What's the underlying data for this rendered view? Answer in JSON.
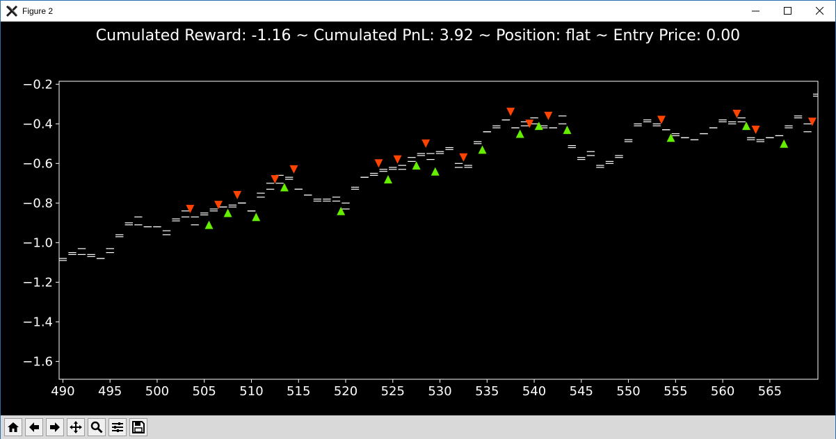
{
  "window": {
    "title": "Figure 2",
    "icon": "matplotlib-x-icon",
    "controls": [
      "minimize-icon",
      "maximize-icon",
      "close-icon"
    ]
  },
  "toolbar": {
    "buttons": [
      "home-icon",
      "back-icon",
      "forward-icon",
      "pan-icon",
      "zoom-icon",
      "configure-subplots-icon",
      "save-icon"
    ]
  },
  "chart_data": {
    "type": "candlestick",
    "title": "Cumulated Reward: -1.16 ~ Cumulated PnL: 3.92 ~ Position: flat ~ Entry Price: 0.00",
    "xlabel": "",
    "ylabel": "",
    "xlim": [
      489.6,
      570.1
    ],
    "ylim": [
      -1.69,
      -0.185
    ],
    "xticks": [
      490,
      495,
      500,
      505,
      510,
      515,
      520,
      525,
      530,
      535,
      540,
      545,
      550,
      555,
      560,
      565
    ],
    "xtick_labels": [
      "490",
      "495",
      "500",
      "505",
      "510",
      "515",
      "520",
      "525",
      "530",
      "535",
      "540",
      "545",
      "550",
      "555",
      "560",
      "565"
    ],
    "yticks": [
      -1.6,
      -1.4,
      -1.2,
      -1.0,
      -0.8,
      -0.6,
      -0.4,
      -0.2
    ],
    "ytick_labels": [
      "−1.6",
      "−1.4",
      "−1.2",
      "−1.0",
      "−0.8",
      "−0.6",
      "−0.4",
      "−0.2"
    ],
    "grid": false,
    "background": "#000000",
    "colors": {
      "bars": "#ffffff",
      "buy_marker": "#66ee00",
      "sell_marker": "#ff4400",
      "axes": "#ffffff",
      "text": "#ffffff"
    },
    "series": [
      {
        "x": [
          489,
          490,
          491,
          492,
          493,
          494,
          495,
          496,
          497,
          498,
          499,
          500,
          501,
          502,
          503,
          504,
          505,
          506,
          507,
          508,
          509,
          510,
          511,
          512,
          513,
          514,
          515,
          516,
          517,
          518,
          519,
          520,
          521,
          522,
          523,
          524,
          525,
          526,
          527,
          528,
          529,
          530,
          531,
          532,
          533,
          534,
          535,
          536,
          537,
          538,
          539,
          540,
          541,
          542,
          543,
          544,
          545,
          546,
          547,
          548,
          549,
          550,
          551,
          552,
          553,
          554,
          555,
          556,
          557,
          558,
          559,
          560,
          561,
          562,
          563,
          564,
          565,
          566,
          567,
          568,
          569,
          570
        ],
        "y": [
          -1.11,
          -1.08,
          -1.06,
          -1.03,
          -1.06,
          -1.08,
          -1.03,
          -0.96,
          -0.9,
          -0.91,
          -0.92,
          -0.92,
          -0.94,
          -0.88,
          -0.87,
          -0.87,
          -0.86,
          -0.84,
          -0.82,
          -0.81,
          -0.8,
          -0.84,
          -0.77,
          -0.7,
          -0.7,
          -0.67,
          -0.73,
          -0.76,
          -0.78,
          -0.79,
          -0.79,
          -0.8,
          -0.73,
          -0.67,
          -0.65,
          -0.63,
          -0.63,
          -0.63,
          -0.57,
          -0.56,
          -0.58,
          -0.55,
          -0.53,
          -0.6,
          -0.62,
          -0.5,
          -0.44,
          -0.42,
          -0.38,
          -0.42,
          -0.41,
          -0.4,
          -0.42,
          -0.42,
          -0.4,
          -0.52,
          -0.57,
          -0.56,
          -0.61,
          -0.6,
          -0.57,
          -0.49,
          -0.41,
          -0.39,
          -0.41,
          -0.43,
          -0.46,
          -0.47,
          -0.48,
          -0.45,
          -0.42,
          -0.39,
          -0.4,
          -0.39,
          -0.47,
          -0.49,
          -0.47,
          -0.46,
          -0.42,
          -0.37,
          -0.4,
          -0.26
        ],
        "y2": [
          -1.12,
          -1.09,
          -1.05,
          -1.06,
          -1.07,
          -1.08,
          -1.05,
          -0.97,
          -0.91,
          -0.87,
          -0.92,
          -0.92,
          -0.96,
          -0.89,
          -0.84,
          -0.91,
          -0.85,
          -0.83,
          -0.82,
          -0.82,
          -0.8,
          -0.84,
          -0.75,
          -0.73,
          -0.66,
          -0.68,
          -0.73,
          -0.76,
          -0.79,
          -0.78,
          -0.77,
          -0.83,
          -0.72,
          -0.67,
          -0.66,
          -0.64,
          -0.62,
          -0.61,
          -0.59,
          -0.55,
          -0.55,
          -0.54,
          -0.52,
          -0.62,
          -0.61,
          -0.49,
          -0.44,
          -0.41,
          -0.38,
          -0.42,
          -0.39,
          -0.37,
          -0.41,
          -0.42,
          -0.36,
          -0.51,
          -0.58,
          -0.54,
          -0.62,
          -0.59,
          -0.56,
          -0.48,
          -0.4,
          -0.38,
          -0.4,
          -0.43,
          -0.45,
          -0.47,
          -0.48,
          -0.45,
          -0.42,
          -0.38,
          -0.39,
          -0.37,
          -0.48,
          -0.48,
          -0.47,
          -0.46,
          -0.41,
          -0.36,
          -0.44,
          -0.25
        ]
      }
    ],
    "buy_markers": [
      [
        505.5,
        -0.91
      ],
      [
        507.5,
        -0.85
      ],
      [
        510.5,
        -0.87
      ],
      [
        513.5,
        -0.72
      ],
      [
        519.5,
        -0.84
      ],
      [
        524.5,
        -0.68
      ],
      [
        527.5,
        -0.61
      ],
      [
        529.5,
        -0.64
      ],
      [
        534.5,
        -0.53
      ],
      [
        538.5,
        -0.45
      ],
      [
        540.5,
        -0.41
      ],
      [
        543.5,
        -0.43
      ],
      [
        554.5,
        -0.47
      ],
      [
        562.5,
        -0.41
      ],
      [
        566.5,
        -0.5
      ]
    ],
    "sell_markers": [
      [
        503.5,
        -0.83
      ],
      [
        506.5,
        -0.81
      ],
      [
        508.5,
        -0.76
      ],
      [
        512.5,
        -0.68
      ],
      [
        514.5,
        -0.63
      ],
      [
        523.5,
        -0.6
      ],
      [
        525.5,
        -0.58
      ],
      [
        528.5,
        -0.5
      ],
      [
        532.5,
        -0.57
      ],
      [
        537.5,
        -0.34
      ],
      [
        539.5,
        -0.4
      ],
      [
        541.5,
        -0.36
      ],
      [
        553.5,
        -0.38
      ],
      [
        561.5,
        -0.35
      ],
      [
        563.5,
        -0.43
      ],
      [
        569.5,
        -0.39
      ]
    ]
  }
}
